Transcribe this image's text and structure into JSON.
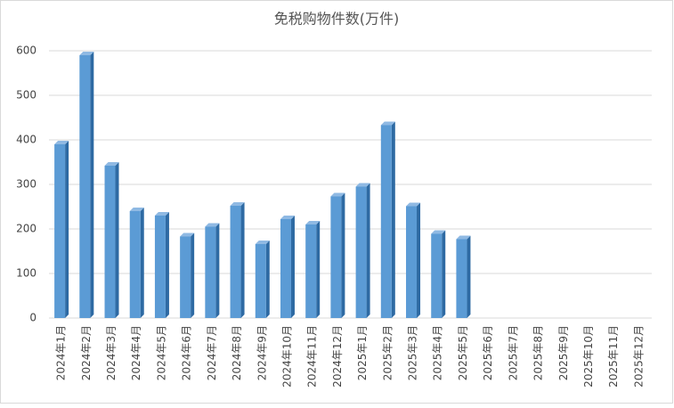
{
  "chart_data": {
    "type": "bar",
    "title": "免税购物件数(万件)",
    "categories": [
      "2024年1月",
      "2024年2月",
      "2024年3月",
      "2024年4月",
      "2024年5月",
      "2024年6月",
      "2024年7月",
      "2024年8月",
      "2024年9月",
      "2024年10月",
      "2024年11月",
      "2024年12月",
      "2025年1月",
      "2025年2月",
      "2025年3月",
      "2025年4月",
      "2025年5月",
      "2025年6月",
      "2025年7月",
      "2025年8月",
      "2025年9月",
      "2025年10月",
      "2025年11月",
      "2025年12月"
    ],
    "values": [
      390,
      590,
      342,
      240,
      230,
      183,
      205,
      252,
      166,
      222,
      210,
      273,
      295,
      433,
      251,
      189,
      177,
      null,
      null,
      null,
      null,
      null,
      null,
      null
    ],
    "color": "#5b9bd5",
    "ylim": [
      0,
      600
    ],
    "yticks": [
      0,
      100,
      200,
      300,
      400,
      500,
      600
    ],
    "grid": true
  }
}
